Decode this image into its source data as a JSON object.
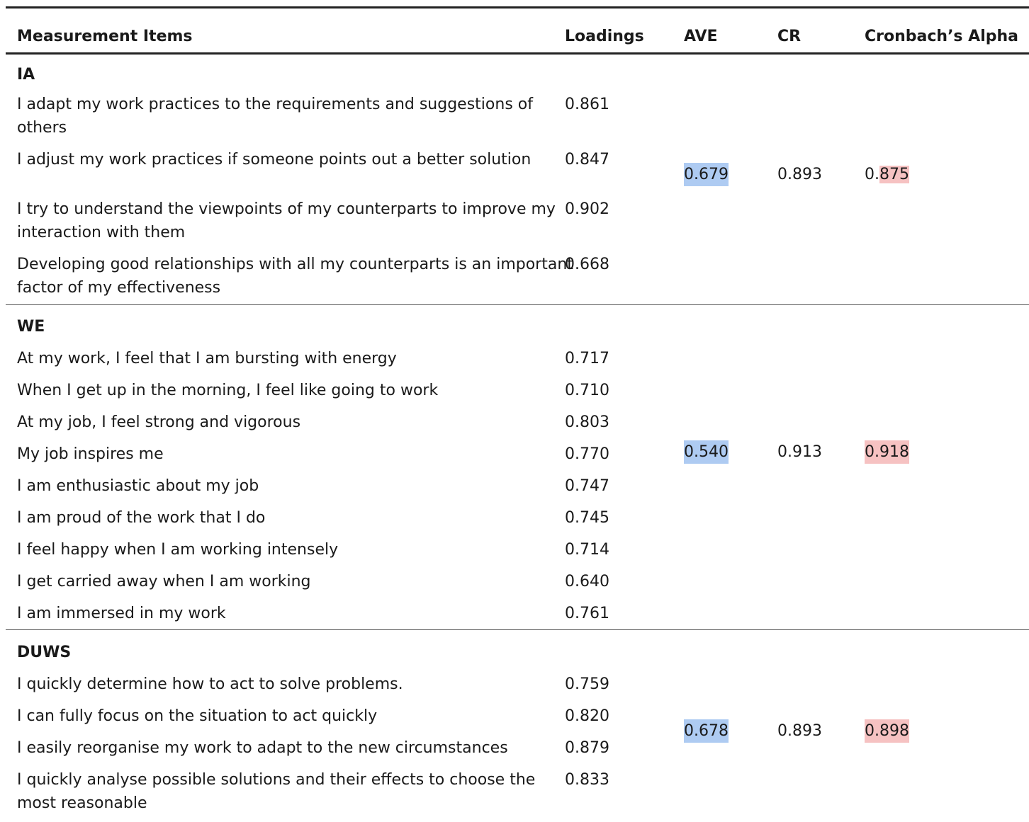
{
  "headers": {
    "items": "Measurement Items",
    "loadings": "Loadings",
    "ave": "AVE",
    "cr": "CR",
    "alpha": "Cronbach’s Alpha"
  },
  "sections": [
    {
      "name": "IA",
      "ave": "0.679",
      "cr": "0.893",
      "alpha_prefix": "0.",
      "alpha_rest": "875",
      "items": [
        {
          "line1": "I adapt my work practices to the requirements and suggestions of",
          "line2": "others",
          "loading": "0.861"
        },
        {
          "line1": "I adjust my work practices if someone points out a better solution",
          "line2": "",
          "loading": "0.847"
        },
        {
          "line1": "I try to understand the viewpoints of my counterparts to improve my",
          "line2": "interaction with them",
          "loading": "0.902"
        },
        {
          "line1": "Developing good relationships with all my counterparts is an important",
          "line2": "factor of my effectiveness",
          "loading": "0.668"
        }
      ]
    },
    {
      "name": "WE",
      "ave": "0.540",
      "cr": "0.913",
      "alpha": "0.918",
      "items": [
        {
          "line1": "At my work, I feel that I am bursting with energy",
          "loading": "0.717"
        },
        {
          "line1": "When I get up in the morning, I feel like going to work",
          "loading": "0.710"
        },
        {
          "line1": "At my job, I feel strong and vigorous",
          "loading": "0.803"
        },
        {
          "line1": "My job inspires me",
          "loading": "0.770"
        },
        {
          "line1": "I am enthusiastic about my job",
          "loading": "0.747"
        },
        {
          "line1": "I am proud of the work that I do",
          "loading": "0.745"
        },
        {
          "line1": "I feel happy when I am working intensely",
          "loading": "0.714"
        },
        {
          "line1": "I get carried away when I am working",
          "loading": "0.640"
        },
        {
          "line1": "I am immersed in my work",
          "loading": "0.761"
        }
      ]
    },
    {
      "name": "DUWS",
      "ave": "0.678",
      "cr": "0.893",
      "alpha": "0.898",
      "items": [
        {
          "line1": "I quickly determine how to act to solve problems.",
          "loading": "0.759"
        },
        {
          "line1": "I can fully focus on the situation to act quickly",
          "loading": "0.820"
        },
        {
          "line1": "I easily reorganise my work to adapt to the new circumstances",
          "loading": "0.879"
        },
        {
          "line1": "I quickly analyse possible solutions and their effects to choose the",
          "line2": "most reasonable",
          "loading": "0.833"
        }
      ]
    }
  ],
  "colors": {
    "ave_highlight": "#aecbf2",
    "alpha_highlight": "#f6c2c2"
  }
}
